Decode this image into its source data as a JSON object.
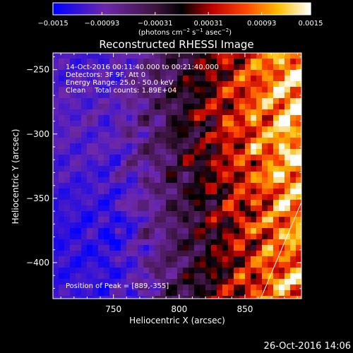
{
  "chart_data": {
    "type": "heatmap",
    "title": "Reconstructed RHESSI Image",
    "xlabel": "Heliocentric X (arcsec)",
    "ylabel": "Heliocentric Y (arcsec)",
    "xlim": [
      704,
      893
    ],
    "ylim": [
      -428,
      -237
    ],
    "x_ticks": [
      750,
      800,
      850
    ],
    "x_tick_labels": [
      "750",
      "800",
      "850"
    ],
    "y_ticks": [
      -250,
      -300,
      -350,
      -400
    ],
    "y_tick_labels": [
      "−250",
      "−300",
      "−350",
      "−400"
    ],
    "colorbar": {
      "range": [
        -0.0015,
        0.0015
      ],
      "ticks": [
        -0.0015,
        -0.00093,
        -0.00031,
        0.00031,
        0.00093,
        0.0015
      ],
      "tick_labels": [
        "−0.0015",
        "−0.00093",
        "−0.00031",
        "0.00031",
        "0.00093",
        "0.0015"
      ],
      "unit_base": "(photons cm",
      "unit_exp1": "−2",
      "unit_mid1": " s",
      "unit_exp2": "−1",
      "unit_mid2": " asec",
      "unit_exp3": "−2",
      "unit_end": ")"
    },
    "annotations": [
      "14-Oct-2016 00:11:40.000 to 00:21:40.000",
      "Detectors: 3F 9F, Att 0",
      "Energy Range: 25.0 - 50.0 keV",
      "Clean    Total counts: 1.89E+04"
    ],
    "peak_label": "Position of Peak = [889,-355]",
    "peak": [
      889,
      -355
    ],
    "limb_line": [
      [
        862,
        -428
      ],
      [
        893,
        -353
      ]
    ]
  },
  "footer": {
    "timestamp": "26-Oct-2016 14:06"
  }
}
